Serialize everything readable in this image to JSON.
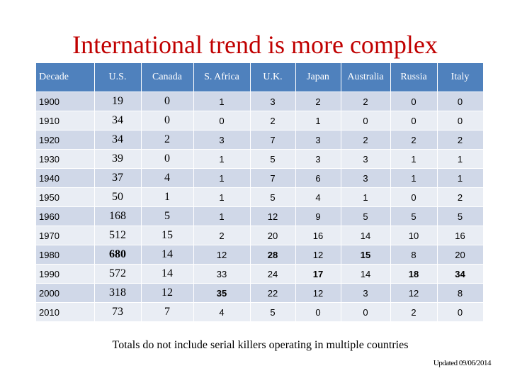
{
  "title": "International trend is more complex",
  "table": {
    "headers": [
      "Decade",
      "U.S.",
      "Canada",
      "S. Africa",
      "U.K.",
      "Japan",
      "Australia",
      "Russia",
      "Italy"
    ],
    "rows": [
      [
        "1900",
        "19",
        "0",
        "1",
        "3",
        "2",
        "2",
        "0",
        "0"
      ],
      [
        "1910",
        "34",
        "0",
        "0",
        "2",
        "1",
        "0",
        "0",
        "0"
      ],
      [
        "1920",
        "34",
        "2",
        "3",
        "7",
        "3",
        "2",
        "2",
        "2"
      ],
      [
        "1930",
        "39",
        "0",
        "1",
        "5",
        "3",
        "3",
        "1",
        "1"
      ],
      [
        "1940",
        "37",
        "4",
        "1",
        "7",
        "6",
        "3",
        "1",
        "1"
      ],
      [
        "1950",
        "50",
        "1",
        "1",
        "5",
        "4",
        "1",
        "0",
        "2"
      ],
      [
        "1960",
        "168",
        "5",
        "1",
        "12",
        "9",
        "5",
        "5",
        "5"
      ],
      [
        "1970",
        "512",
        "15",
        "2",
        "20",
        "16",
        "14",
        "10",
        "16"
      ],
      [
        "1980",
        "680",
        "14",
        "12",
        "28",
        "12",
        "15",
        "8",
        "20"
      ],
      [
        "1990",
        "572",
        "14",
        "33",
        "24",
        "17",
        "14",
        "18",
        "34"
      ],
      [
        "2000",
        "318",
        "12",
        "35",
        "22",
        "12",
        "3",
        "12",
        "8"
      ],
      [
        "2010",
        "73",
        "7",
        "4",
        "5",
        "0",
        "0",
        "2",
        "0"
      ]
    ],
    "bold_cells": [
      [
        8,
        1
      ],
      [
        8,
        4
      ],
      [
        8,
        6
      ],
      [
        9,
        5
      ],
      [
        9,
        7
      ],
      [
        9,
        8
      ],
      [
        10,
        3
      ]
    ]
  },
  "footnote": "Totals do not include serial killers operating in multiple countries",
  "updated": "Updated 09/06/2014",
  "colors": {
    "title": "#c00000",
    "header_bg": "#4f81bd",
    "row_odd": "#d0d8e8",
    "row_even": "#e9edf4"
  }
}
